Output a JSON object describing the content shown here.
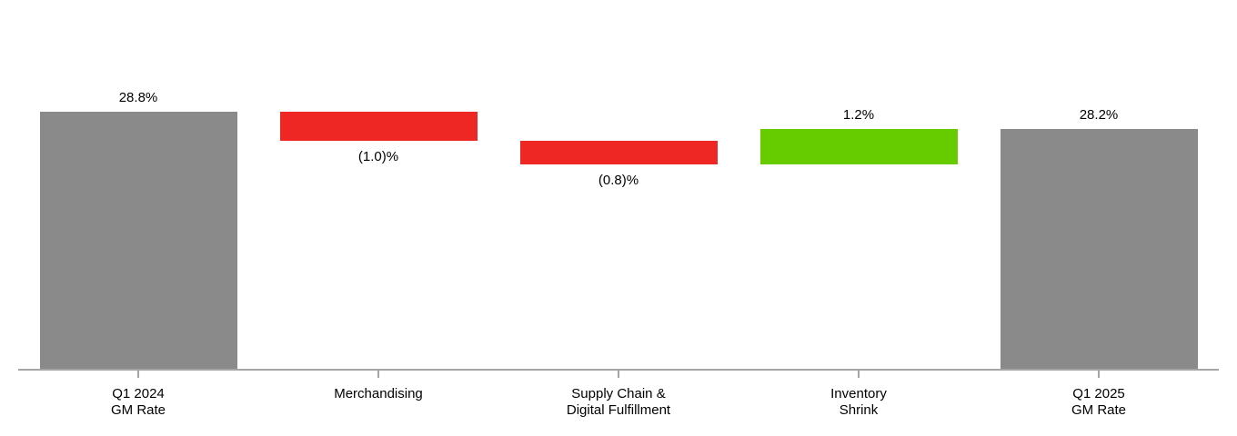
{
  "chart_data": {
    "type": "bar",
    "subtype": "waterfall",
    "title": "",
    "xlabel": "",
    "ylabel": "",
    "ylim": [
      20,
      32
    ],
    "grid": false,
    "legend": false,
    "categories": [
      "Q1 2024 GM Rate",
      "Merchandising",
      "Supply Chain & Digital Fulfillment",
      "Inventory Shrink",
      "Q1 2025 GM Rate"
    ],
    "colors": {
      "total": "#8A8A8A",
      "decrease": "#EE2624",
      "increase": "#66CC00",
      "axis": "#A5A5A5",
      "text": "#000000"
    },
    "bars": [
      {
        "category_lines": [
          "Q1 2024",
          "GM Rate"
        ],
        "kind": "total",
        "value": 28.8,
        "start": 20.0,
        "end": 28.8,
        "data_label": "28.8%",
        "label_side": "above"
      },
      {
        "category_lines": [
          "Merchandising"
        ],
        "kind": "decrease",
        "value": -1.0,
        "start": 28.8,
        "end": 27.8,
        "data_label": "(1.0)%",
        "label_side": "below"
      },
      {
        "category_lines": [
          "Supply Chain &",
          "Digital Fulfillment"
        ],
        "kind": "decrease",
        "value": -0.8,
        "start": 27.8,
        "end": 27.0,
        "data_label": "(0.8)%",
        "label_side": "below"
      },
      {
        "category_lines": [
          "Inventory",
          "Shrink"
        ],
        "kind": "increase",
        "value": 1.2,
        "start": 27.0,
        "end": 28.2,
        "data_label": "1.2%",
        "label_side": "above"
      },
      {
        "category_lines": [
          "Q1 2025",
          "GM Rate"
        ],
        "kind": "total",
        "value": 28.2,
        "start": 20.0,
        "end": 28.2,
        "data_label": "28.2%",
        "label_side": "above"
      }
    ]
  }
}
